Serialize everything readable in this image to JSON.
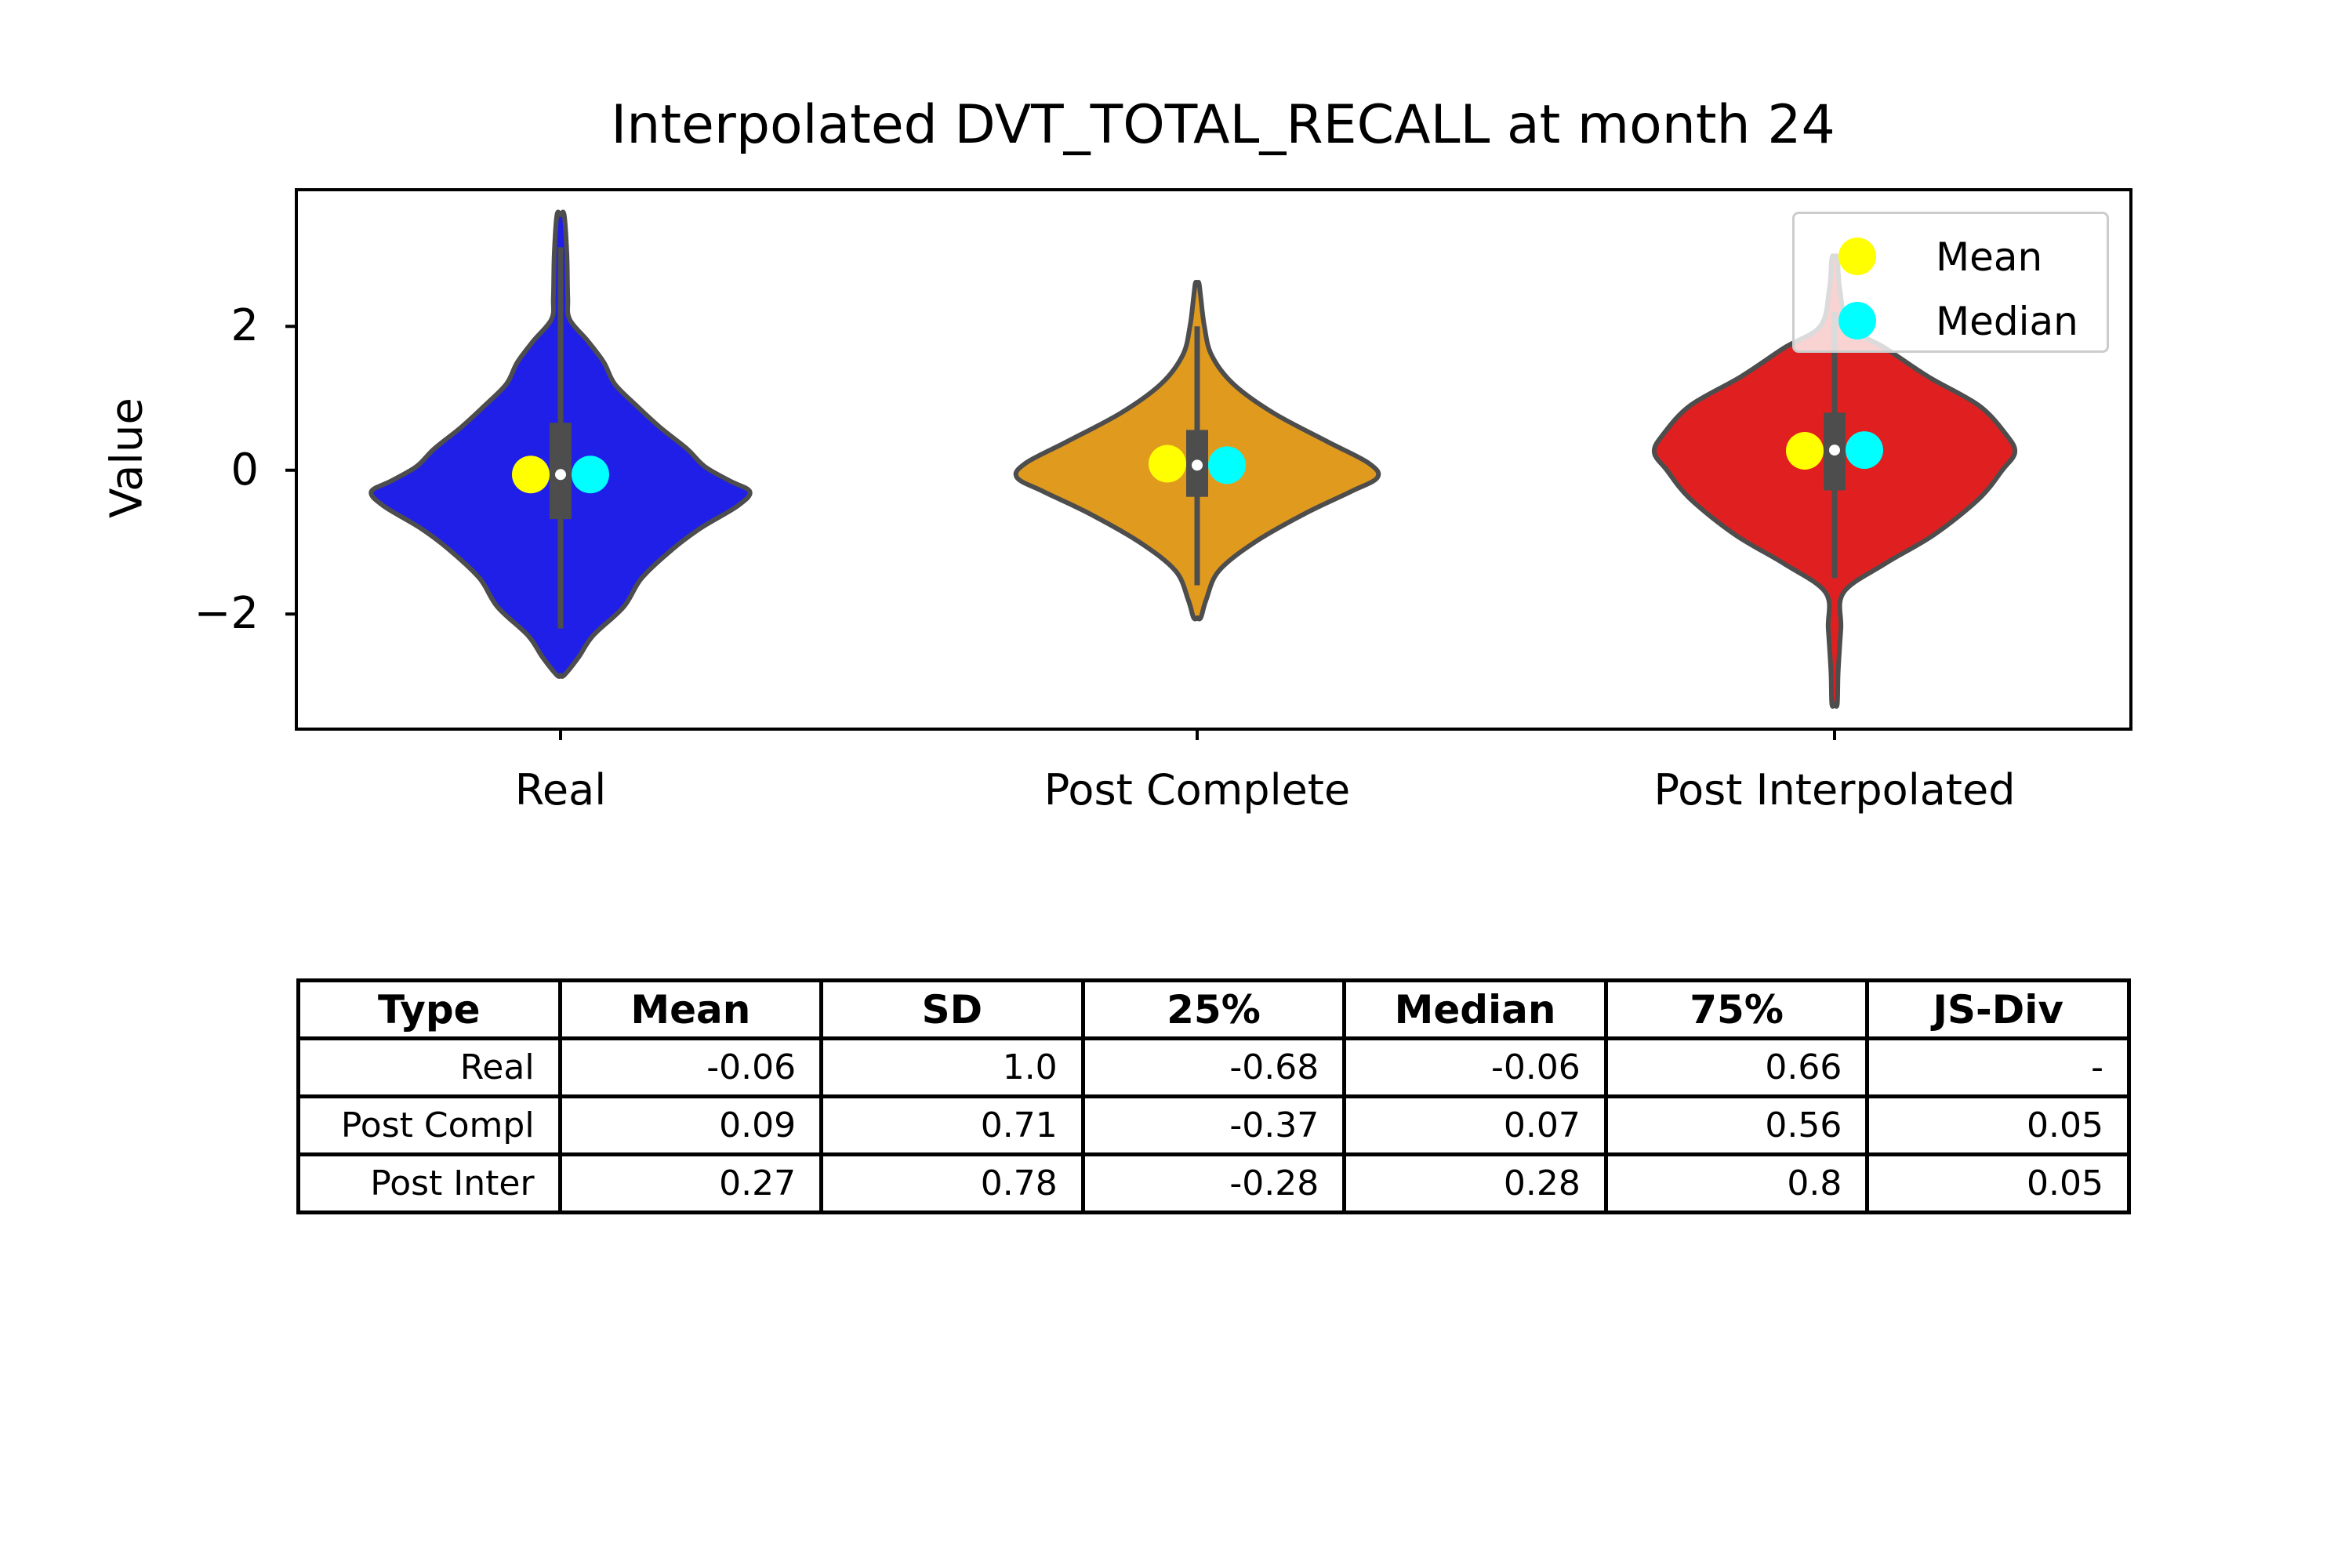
{
  "chart_data": {
    "type": "violin",
    "title": "Interpolated DVT_TOTAL_RECALL at month 24",
    "xlabel": "",
    "ylabel": "Value",
    "ylim": [
      -3.6,
      3.9
    ],
    "yticks": [
      {
        "value": 2,
        "label": "2"
      },
      {
        "value": 0,
        "label": "0"
      },
      {
        "value": -2,
        "label": "−2"
      }
    ],
    "categories": [
      "Real",
      "Post Complete",
      "Post Interpolated"
    ],
    "colors": [
      "#1f1fe8",
      "#e09b1f",
      "#e02020"
    ],
    "legend": {
      "position": "top-right",
      "entries": [
        {
          "label": "Mean",
          "color": "#ffff00"
        },
        {
          "label": "Median",
          "color": "#00ffff"
        }
      ]
    },
    "series": [
      {
        "category": "Real",
        "mean": -0.06,
        "median": -0.06,
        "q1": -0.68,
        "q3": 0.66,
        "whisker_low": -2.2,
        "whisker_high": 3.1,
        "density_profile": [
          [
            -2.85,
            0.02
          ],
          [
            -2.6,
            0.1
          ],
          [
            -2.3,
            0.18
          ],
          [
            -1.9,
            0.35
          ],
          [
            -1.5,
            0.45
          ],
          [
            -1.1,
            0.62
          ],
          [
            -0.8,
            0.78
          ],
          [
            -0.5,
            0.98
          ],
          [
            -0.3,
            1.05
          ],
          [
            -0.15,
            0.94
          ],
          [
            0.05,
            0.8
          ],
          [
            0.3,
            0.7
          ],
          [
            0.6,
            0.55
          ],
          [
            0.9,
            0.42
          ],
          [
            1.2,
            0.3
          ],
          [
            1.5,
            0.24
          ],
          [
            1.8,
            0.15
          ],
          [
            2.1,
            0.05
          ],
          [
            2.4,
            0.04
          ],
          [
            3.0,
            0.035
          ],
          [
            3.55,
            0.02
          ]
        ]
      },
      {
        "category": "Post Complete",
        "mean": 0.09,
        "median": 0.07,
        "q1": -0.37,
        "q3": 0.56,
        "whisker_low": -1.6,
        "whisker_high": 2.0,
        "density_profile": [
          [
            -2.05,
            0.02
          ],
          [
            -1.8,
            0.05
          ],
          [
            -1.4,
            0.12
          ],
          [
            -1.0,
            0.32
          ],
          [
            -0.6,
            0.6
          ],
          [
            -0.3,
            0.85
          ],
          [
            -0.1,
            1.0
          ],
          [
            0.1,
            0.95
          ],
          [
            0.4,
            0.72
          ],
          [
            0.8,
            0.42
          ],
          [
            1.2,
            0.2
          ],
          [
            1.6,
            0.08
          ],
          [
            2.0,
            0.04
          ],
          [
            2.4,
            0.02
          ],
          [
            2.6,
            0.01
          ]
        ]
      },
      {
        "category": "Post Interpolated",
        "mean": 0.27,
        "median": 0.28,
        "q1": -0.28,
        "q3": 0.8,
        "whisker_low": -1.5,
        "whisker_high": 2.2,
        "density_profile": [
          [
            -3.25,
            0.015
          ],
          [
            -2.8,
            0.02
          ],
          [
            -2.2,
            0.035
          ],
          [
            -1.7,
            0.05
          ],
          [
            -1.3,
            0.28
          ],
          [
            -0.9,
            0.55
          ],
          [
            -0.4,
            0.8
          ],
          [
            0.0,
            0.93
          ],
          [
            0.25,
            1.0
          ],
          [
            0.5,
            0.95
          ],
          [
            0.9,
            0.8
          ],
          [
            1.3,
            0.52
          ],
          [
            1.7,
            0.28
          ],
          [
            2.0,
            0.08
          ],
          [
            2.5,
            0.03
          ],
          [
            2.95,
            0.015
          ]
        ]
      }
    ]
  },
  "table": {
    "headers": [
      "Type",
      "Mean",
      "SD",
      "25%",
      "Median",
      "75%",
      "JS-Div"
    ],
    "rows": [
      [
        "Real",
        "-0.06",
        "1.0",
        "-0.68",
        "-0.06",
        "0.66",
        "-"
      ],
      [
        "Post Compl",
        "0.09",
        "0.71",
        "-0.37",
        "0.07",
        "0.56",
        "0.05"
      ],
      [
        "Post Inter",
        "0.27",
        "0.78",
        "-0.28",
        "0.28",
        "0.8",
        "0.05"
      ]
    ]
  }
}
